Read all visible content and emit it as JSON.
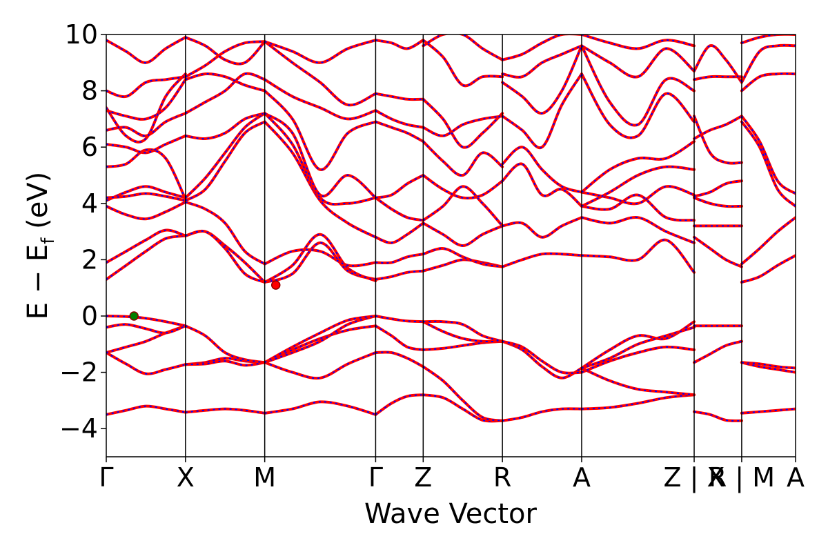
{
  "chart_data": {
    "type": "line",
    "title": "",
    "xlabel": "Wave Vector",
    "ylabel": {
      "main": "E − E",
      "subscript": "f",
      "unit": " (eV)"
    },
    "ylim": [
      -5,
      10
    ],
    "yticks": [
      -4,
      -2,
      0,
      2,
      4,
      6,
      8,
      10
    ],
    "xlim": [
      0,
      8.7
    ],
    "kpoints": [
      {
        "x": 0.0,
        "label": "Γ"
      },
      {
        "x": 1.0,
        "label": "X"
      },
      {
        "x": 2.0,
        "label": "M"
      },
      {
        "x": 3.4,
        "label": "Γ"
      },
      {
        "x": 4.0,
        "label": "Z"
      },
      {
        "x": 5.0,
        "label": "R"
      },
      {
        "x": 6.0,
        "label": "A"
      },
      {
        "x": 7.42,
        "label": "Z | X"
      },
      {
        "x": 8.02,
        "label": "R | M"
      },
      {
        "x": 8.7,
        "label": "A"
      }
    ],
    "grid": false,
    "legend": "none",
    "series_colors": {
      "band": "#ff0000",
      "band_dash": "#0000ff"
    },
    "markers": [
      {
        "name": "VBM",
        "x": 0.35,
        "y": 0.0,
        "color": "#008000"
      },
      {
        "name": "CBM",
        "x": 2.14,
        "y": 1.1,
        "color": "#ff0000"
      }
    ],
    "segments": [
      {
        "x": [
          0.0,
          1.0
        ],
        "bands": [
          [
            -3.5,
            -3.35,
            -3.2,
            -3.3,
            -3.42
          ],
          [
            -1.3,
            -1.7,
            -2.05,
            -1.9,
            -1.72
          ],
          [
            -1.3,
            -1.1,
            -0.9,
            -0.6,
            -0.35
          ],
          [
            -0.4,
            -0.3,
            -0.45,
            -0.6,
            -0.35
          ],
          [
            0.0,
            -0.02,
            -0.08,
            -0.2,
            -0.35
          ],
          [
            1.3,
            1.8,
            2.3,
            2.75,
            2.85
          ],
          [
            1.9,
            2.3,
            2.7,
            3.05,
            2.85
          ],
          [
            3.9,
            3.6,
            3.45,
            3.7,
            4.05
          ],
          [
            4.1,
            4.4,
            4.6,
            4.4,
            4.2
          ],
          [
            4.2,
            4.25,
            4.35,
            4.25,
            4.1
          ],
          [
            5.3,
            5.4,
            5.9,
            5.6,
            4.15
          ],
          [
            6.1,
            6.0,
            5.8,
            6.1,
            6.4
          ],
          [
            6.6,
            6.7,
            6.4,
            6.9,
            7.2
          ],
          [
            7.3,
            7.1,
            7.0,
            7.4,
            8.4
          ],
          [
            7.4,
            6.4,
            6.3,
            7.8,
            8.6
          ],
          [
            8.0,
            7.8,
            8.3,
            8.4,
            8.5
          ],
          [
            9.8,
            9.4,
            9.0,
            9.5,
            9.9
          ]
        ]
      },
      {
        "x": [
          1.0,
          2.0
        ],
        "bands": [
          [
            -3.42,
            -3.35,
            -3.3,
            -3.35,
            -3.45
          ],
          [
            -1.72,
            -1.65,
            -1.5,
            -1.6,
            -1.65
          ],
          [
            -1.72,
            -1.7,
            -1.6,
            -1.75,
            -1.65
          ],
          [
            -0.35,
            -0.7,
            -1.3,
            -1.55,
            -1.65
          ],
          [
            2.85,
            3.0,
            2.5,
            1.9,
            1.2
          ],
          [
            2.85,
            3.0,
            2.4,
            1.5,
            1.2
          ],
          [
            4.05,
            3.8,
            3.3,
            2.3,
            1.85
          ],
          [
            4.1,
            4.5,
            5.5,
            6.5,
            6.9
          ],
          [
            4.2,
            4.9,
            5.8,
            6.7,
            7.2
          ],
          [
            6.4,
            6.3,
            6.5,
            7.0,
            7.2
          ],
          [
            7.2,
            7.6,
            8.0,
            8.6,
            8.4
          ],
          [
            8.4,
            8.6,
            8.5,
            8.2,
            8.0
          ],
          [
            8.5,
            8.9,
            9.4,
            9.7,
            9.75
          ],
          [
            9.9,
            9.6,
            9.1,
            9.0,
            9.75
          ]
        ]
      },
      {
        "x": [
          2.0,
          3.4
        ],
        "bands": [
          [
            -3.45,
            -3.3,
            -3.05,
            -3.2,
            -3.5
          ],
          [
            -1.65,
            -2.0,
            -2.2,
            -1.7,
            -1.3
          ],
          [
            -1.65,
            -1.2,
            -0.8,
            -0.5,
            -0.35
          ],
          [
            -1.65,
            -1.3,
            -0.9,
            -0.3,
            0.0
          ],
          [
            -1.65,
            -1.1,
            -0.6,
            -0.15,
            0.0
          ],
          [
            1.2,
            1.5,
            2.6,
            1.6,
            1.3
          ],
          [
            1.2,
            1.8,
            2.9,
            1.7,
            1.25
          ],
          [
            1.85,
            2.3,
            2.3,
            1.8,
            1.9
          ],
          [
            6.9,
            5.8,
            4.1,
            3.3,
            2.8
          ],
          [
            7.2,
            6.1,
            4.2,
            4.0,
            4.2
          ],
          [
            7.2,
            6.5,
            4.3,
            5.0,
            4.2
          ],
          [
            8.0,
            7.0,
            5.2,
            6.5,
            6.9
          ],
          [
            8.4,
            7.8,
            7.4,
            7.0,
            7.3
          ],
          [
            9.75,
            9.0,
            8.3,
            7.5,
            7.9
          ],
          [
            9.75,
            9.4,
            9.0,
            9.5,
            9.8
          ]
        ]
      },
      {
        "x": [
          3.4,
          4.0
        ],
        "bands": [
          [
            -3.5,
            -3.1,
            -2.85,
            -2.8
          ],
          [
            -1.3,
            -1.3,
            -1.5,
            -1.8
          ],
          [
            -0.35,
            -0.7,
            -1.1,
            -1.2
          ],
          [
            0.0,
            -0.1,
            -0.18,
            -0.2
          ],
          [
            1.3,
            1.4,
            1.55,
            1.6
          ],
          [
            1.9,
            1.9,
            2.1,
            2.2
          ],
          [
            2.8,
            2.6,
            2.9,
            3.3
          ],
          [
            4.2,
            3.8,
            3.5,
            3.4
          ],
          [
            4.2,
            4.3,
            4.7,
            5.0
          ],
          [
            6.9,
            6.7,
            6.5,
            6.2
          ],
          [
            7.3,
            7.0,
            6.8,
            6.7
          ],
          [
            7.9,
            7.8,
            7.7,
            7.7
          ],
          [
            9.8,
            9.7,
            9.5,
            9.8
          ]
        ]
      },
      {
        "x": [
          4.0,
          5.0
        ],
        "bands": [
          [
            -2.8,
            -2.9,
            -3.3,
            -3.7,
            -3.72
          ],
          [
            -1.8,
            -2.3,
            -3.0,
            -3.6,
            -3.72
          ],
          [
            -1.2,
            -1.15,
            -1.05,
            -0.95,
            -0.9
          ],
          [
            -0.2,
            -0.55,
            -0.8,
            -0.9,
            -0.9
          ],
          [
            -0.2,
            -0.2,
            -0.3,
            -0.7,
            -0.9
          ],
          [
            1.6,
            1.8,
            2.0,
            1.9,
            1.75
          ],
          [
            2.2,
            2.4,
            2.1,
            1.85,
            1.75
          ],
          [
            3.3,
            2.9,
            2.5,
            2.9,
            3.2
          ],
          [
            3.4,
            3.9,
            4.6,
            4.0,
            3.2
          ],
          [
            5.0,
            4.5,
            4.2,
            4.3,
            4.8
          ],
          [
            6.2,
            5.5,
            5.0,
            5.8,
            5.3
          ],
          [
            6.7,
            6.4,
            6.8,
            7.0,
            7.1
          ],
          [
            7.7,
            7.0,
            6.0,
            6.5,
            7.2
          ],
          [
            9.8,
            9.2,
            8.2,
            8.5,
            8.5
          ],
          [
            9.6,
            10.0,
            10.0,
            9.5,
            9.1
          ]
        ]
      },
      {
        "x": [
          5.0,
          6.0
        ],
        "bands": [
          [
            -3.72,
            -3.6,
            -3.4,
            -3.3,
            -3.3
          ],
          [
            -0.9,
            -1.2,
            -1.8,
            -2.2,
            -1.85
          ],
          [
            -0.9,
            -1.1,
            -1.6,
            -2.0,
            -2.0
          ],
          [
            1.75,
            2.0,
            2.2,
            2.2,
            2.15
          ],
          [
            3.2,
            3.3,
            2.8,
            3.2,
            3.5
          ],
          [
            4.8,
            5.4,
            4.3,
            4.5,
            3.9
          ],
          [
            5.4,
            6.0,
            5.2,
            4.6,
            4.4
          ],
          [
            7.1,
            6.6,
            6.0,
            7.5,
            8.6
          ],
          [
            8.3,
            7.8,
            7.2,
            8.0,
            9.6
          ],
          [
            8.6,
            8.5,
            9.0,
            9.3,
            9.6
          ],
          [
            9.1,
            9.3,
            9.7,
            10.0,
            10.0
          ]
        ]
      },
      {
        "x": [
          6.0,
          7.42
        ],
        "bands": [
          [
            -3.3,
            -3.25,
            -3.1,
            -2.9,
            -2.8
          ],
          [
            -1.85,
            -2.3,
            -2.6,
            -2.7,
            -2.8
          ],
          [
            -1.85,
            -1.2,
            -0.7,
            -0.8,
            -0.2
          ],
          [
            -1.85,
            -1.5,
            -1.0,
            -0.7,
            -0.4
          ],
          [
            -2.0,
            -1.6,
            -1.3,
            -1.1,
            -1.2
          ],
          [
            2.15,
            2.1,
            2.0,
            2.7,
            1.55
          ],
          [
            3.5,
            3.3,
            3.5,
            3.0,
            2.6
          ],
          [
            3.9,
            3.8,
            4.3,
            3.5,
            3.4
          ],
          [
            4.4,
            4.2,
            4.0,
            4.6,
            4.3
          ],
          [
            3.9,
            4.4,
            5.0,
            5.3,
            5.2
          ],
          [
            4.4,
            5.2,
            5.6,
            5.6,
            6.2
          ],
          [
            8.6,
            6.8,
            6.4,
            7.9,
            6.9
          ],
          [
            9.6,
            7.6,
            6.8,
            8.4,
            8.0
          ],
          [
            9.6,
            9.0,
            8.5,
            9.5,
            8.7
          ],
          [
            10.0,
            9.7,
            9.5,
            9.8,
            9.6
          ]
        ]
      },
      {
        "x": [
          7.42,
          8.02
        ],
        "bands": [
          [
            -3.4,
            -3.5,
            -3.7,
            -3.72
          ],
          [
            -1.65,
            -1.35,
            -1.05,
            -0.9
          ],
          [
            -0.35,
            -0.35,
            -0.35,
            -0.35
          ],
          [
            2.8,
            2.4,
            2.0,
            1.75
          ],
          [
            3.2,
            3.2,
            3.2,
            3.2
          ],
          [
            4.2,
            4.0,
            3.9,
            3.9
          ],
          [
            4.25,
            4.4,
            4.7,
            4.8
          ],
          [
            6.3,
            6.6,
            6.8,
            7.1
          ],
          [
            7.1,
            5.8,
            5.45,
            5.45
          ],
          [
            8.4,
            8.5,
            8.5,
            8.5
          ],
          [
            8.7,
            9.6,
            9.1,
            8.3
          ]
        ]
      },
      {
        "x": [
          8.02,
          8.7
        ],
        "bands": [
          [
            -3.45,
            -3.4,
            -3.35,
            -3.3
          ],
          [
            -1.65,
            -1.7,
            -1.8,
            -1.85
          ],
          [
            -1.65,
            -1.8,
            -1.9,
            -2.0
          ],
          [
            1.2,
            1.4,
            1.8,
            2.15
          ],
          [
            1.85,
            2.4,
            3.0,
            3.5
          ],
          [
            6.9,
            6.0,
            4.5,
            3.9
          ],
          [
            7.1,
            6.2,
            4.8,
            4.35
          ],
          [
            8.0,
            8.5,
            8.6,
            8.6
          ],
          [
            8.3,
            9.4,
            9.6,
            9.6
          ],
          [
            9.7,
            9.9,
            10.0,
            10.0
          ]
        ]
      }
    ]
  }
}
